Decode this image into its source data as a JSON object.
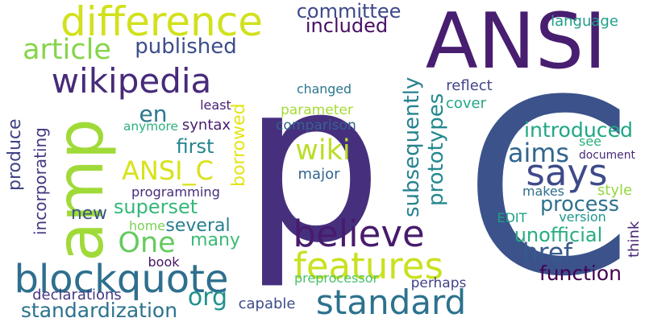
{
  "words": [
    {
      "text": "p",
      "color": "#46307e"
    },
    {
      "text": "C",
      "color": "#3b528b"
    },
    {
      "text": "ANSI",
      "color": "#481e70"
    },
    {
      "text": "amp",
      "color": "#a0da39"
    },
    {
      "text": "difference",
      "color": "#d1e11c"
    },
    {
      "text": "wikipedia",
      "color": "#472a7a"
    },
    {
      "text": "blockquote",
      "color": "#2e6f8e"
    },
    {
      "text": "standard",
      "color": "#2c728e"
    },
    {
      "text": "believe",
      "color": "#481b6d"
    },
    {
      "text": "features",
      "color": "#cae11f"
    },
    {
      "text": "says",
      "color": "#3e4a89"
    },
    {
      "text": "article",
      "color": "#86d549"
    },
    {
      "text": "wiki",
      "color": "#bade28"
    },
    {
      "text": "ANSI_C",
      "color": "#d8e219"
    },
    {
      "text": "href",
      "color": "#375a8c"
    },
    {
      "text": "aims",
      "color": "#31668e"
    },
    {
      "text": "One",
      "color": "#65cb5e"
    },
    {
      "text": "org",
      "color": "#20928c"
    },
    {
      "text": "committee",
      "color": "#3e4989"
    },
    {
      "text": "included",
      "color": "#471063"
    },
    {
      "text": "published",
      "color": "#3d4d8a"
    },
    {
      "text": "en",
      "color": "#2a788e"
    },
    {
      "text": "introduced",
      "color": "#21a685"
    },
    {
      "text": "function",
      "color": "#440154"
    },
    {
      "text": "process",
      "color": "#2d718e"
    },
    {
      "text": "unofficial",
      "color": "#27ad81"
    },
    {
      "text": "superset",
      "color": "#35b779"
    },
    {
      "text": "several",
      "color": "#277f8e"
    },
    {
      "text": "standardization",
      "color": "#2c728e"
    },
    {
      "text": "first",
      "color": "#25848e"
    },
    {
      "text": "many",
      "color": "#3bbb75"
    },
    {
      "text": "new",
      "color": "#3a548c"
    },
    {
      "text": "prototypes",
      "color": "#23898e"
    },
    {
      "text": "subsequently",
      "color": "#26828e"
    },
    {
      "text": "borrowed",
      "color": "#e5e419"
    },
    {
      "text": "incorporating",
      "color": "#453781"
    },
    {
      "text": "produce",
      "color": "#414487"
    },
    {
      "text": "declarations",
      "color": "#443983"
    },
    {
      "text": "language",
      "color": "#1f9f88"
    },
    {
      "text": "reflect",
      "color": "#404688"
    },
    {
      "text": "cover",
      "color": "#22a785"
    },
    {
      "text": "changed",
      "color": "#2a768e"
    },
    {
      "text": "parameter",
      "color": "#a5db36"
    },
    {
      "text": "least",
      "color": "#482173"
    },
    {
      "text": "comparison",
      "color": "#33638d"
    },
    {
      "text": "syntax",
      "color": "#481f70"
    },
    {
      "text": "anymore",
      "color": "#2ab07f"
    },
    {
      "text": "major",
      "color": "#32648e"
    },
    {
      "text": "programming",
      "color": "#472c7a"
    },
    {
      "text": "see",
      "color": "#2db27d"
    },
    {
      "text": "document",
      "color": "#482979"
    },
    {
      "text": "makes",
      "color": "#2e6e8e"
    },
    {
      "text": "style",
      "color": "#95d840"
    },
    {
      "text": "EDIT",
      "color": "#1fa088"
    },
    {
      "text": "version",
      "color": "#1f988b"
    },
    {
      "text": "home",
      "color": "#7ad151"
    },
    {
      "text": "book",
      "color": "#481467"
    },
    {
      "text": "think",
      "color": "#482475"
    },
    {
      "text": "preprocessor",
      "color": "#4ac16d"
    },
    {
      "text": "perhaps",
      "color": "#414487"
    },
    {
      "text": "capable",
      "color": "#3e4c8a"
    }
  ]
}
